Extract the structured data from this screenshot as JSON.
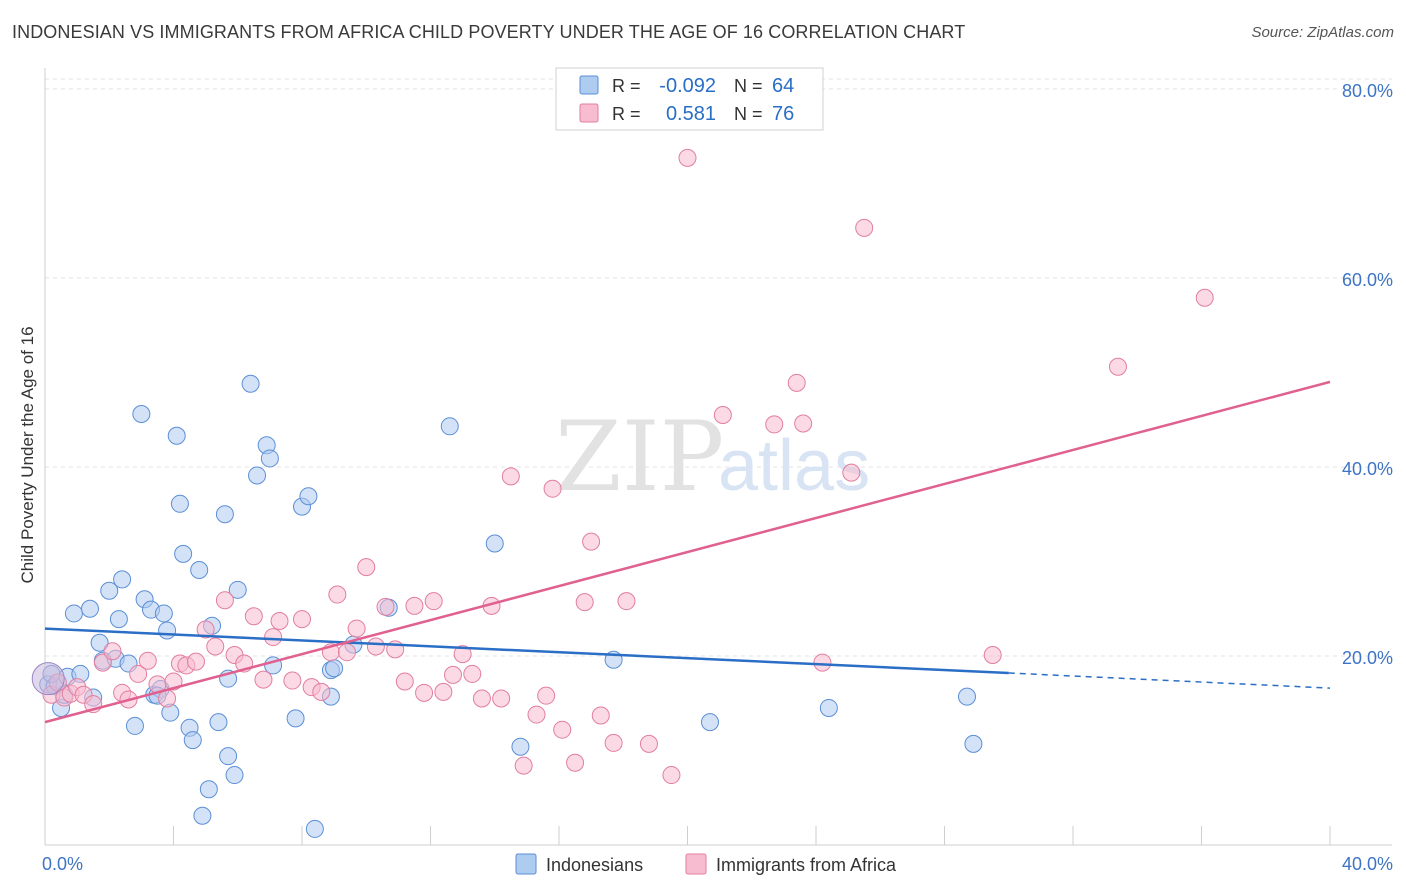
{
  "header": {
    "title": "INDONESIAN VS IMMIGRANTS FROM AFRICA CHILD POVERTY UNDER THE AGE OF 16 CORRELATION CHART",
    "source": "Source: ZipAtlas.com"
  },
  "watermark": {
    "zip": "ZIP",
    "atlas": "atlas"
  },
  "stats_box": {
    "rows": [
      {
        "r_label": "R =",
        "r_value": "-0.092",
        "n_label": "N =",
        "n_value": "64",
        "color": "#aecbf0"
      },
      {
        "r_label": "R =",
        "r_value": "0.581",
        "n_label": "N =",
        "n_value": "76",
        "color": "#f7bccf"
      }
    ]
  },
  "chart_data": {
    "type": "scatter",
    "title": "INDONESIAN VS IMMIGRANTS FROM AFRICA CHILD POVERTY UNDER THE AGE OF 16 CORRELATION CHART",
    "xlabel": "",
    "ylabel": "Child Poverty Under the Age of 16",
    "xlim": [
      0,
      40
    ],
    "ylim": [
      0,
      82
    ],
    "x_tick_labels": [
      "0.0%",
      "40.0%"
    ],
    "y_ticks": [
      20,
      40,
      60,
      80
    ],
    "y_tick_labels": [
      "20.0%",
      "40.0%",
      "60.0%",
      "80.0%"
    ],
    "grid": true,
    "legend_position": "bottom-center",
    "series": [
      {
        "name": "Indonesians",
        "color": "#aecbf0",
        "stroke": "#5b8fd6",
        "line_color": "#2a6ec6",
        "trend": {
          "x0": 0,
          "y0": 22.9,
          "x1": 30,
          "y1": 18.2,
          "dash_x1": 40,
          "dash_y1": 16.6
        },
        "points": [
          [
            0.1,
            17.0
          ],
          [
            0.3,
            16.8
          ],
          [
            0.5,
            14.5
          ],
          [
            0.6,
            15.9
          ],
          [
            0.7,
            17.8
          ],
          [
            0.9,
            24.5
          ],
          [
            1.1,
            18.1
          ],
          [
            1.4,
            25.0
          ],
          [
            1.5,
            15.6
          ],
          [
            1.7,
            21.4
          ],
          [
            1.8,
            19.5
          ],
          [
            2.0,
            26.9
          ],
          [
            2.2,
            19.7
          ],
          [
            2.3,
            23.9
          ],
          [
            2.4,
            28.1
          ],
          [
            2.6,
            19.2
          ],
          [
            2.8,
            12.6
          ],
          [
            3.0,
            45.6
          ],
          [
            3.1,
            26.0
          ],
          [
            3.3,
            24.9
          ],
          [
            3.4,
            15.9
          ],
          [
            3.6,
            16.5
          ],
          [
            3.7,
            24.5
          ],
          [
            3.8,
            22.7
          ],
          [
            3.9,
            14.0
          ],
          [
            4.1,
            43.3
          ],
          [
            4.2,
            36.1
          ],
          [
            4.3,
            30.8
          ],
          [
            4.5,
            12.4
          ],
          [
            4.6,
            11.1
          ],
          [
            4.8,
            29.1
          ],
          [
            5.1,
            5.9
          ],
          [
            5.2,
            23.2
          ],
          [
            5.4,
            13.0
          ],
          [
            5.6,
            35.0
          ],
          [
            5.7,
            17.6
          ],
          [
            5.9,
            7.4
          ],
          [
            6.0,
            27.0
          ],
          [
            6.4,
            48.8
          ],
          [
            6.6,
            39.1
          ],
          [
            6.9,
            42.3
          ],
          [
            7.0,
            40.9
          ],
          [
            7.1,
            19.0
          ],
          [
            7.8,
            13.4
          ],
          [
            8.0,
            35.8
          ],
          [
            8.2,
            36.9
          ],
          [
            8.4,
            1.7
          ],
          [
            8.9,
            18.5
          ],
          [
            9.0,
            18.7
          ],
          [
            9.6,
            21.2
          ],
          [
            10.7,
            25.1
          ],
          [
            12.6,
            44.3
          ],
          [
            14.0,
            31.9
          ],
          [
            14.8,
            10.4
          ],
          [
            17.7,
            19.6
          ],
          [
            20.7,
            13.0
          ],
          [
            24.4,
            14.5
          ],
          [
            28.7,
            15.7
          ],
          [
            28.9,
            10.7
          ],
          [
            0.2,
            18.1
          ],
          [
            5.7,
            9.4
          ],
          [
            4.9,
            3.1
          ],
          [
            3.5,
            15.8
          ],
          [
            8.9,
            15.7
          ]
        ]
      },
      {
        "name": "Immigrants from Africa",
        "color": "#f7bccf",
        "stroke": "#e27ea0",
        "line_color": "#e0608f",
        "trend": {
          "x0": 0,
          "y0": 13.0,
          "x1": 40,
          "y1": 49.0
        },
        "points": [
          [
            0.2,
            15.9
          ],
          [
            0.4,
            17.2
          ],
          [
            0.6,
            15.6
          ],
          [
            0.8,
            16.0
          ],
          [
            1.0,
            16.7
          ],
          [
            1.2,
            15.9
          ],
          [
            1.5,
            14.9
          ],
          [
            1.8,
            19.3
          ],
          [
            2.1,
            20.5
          ],
          [
            2.4,
            16.1
          ],
          [
            2.6,
            15.4
          ],
          [
            2.9,
            18.1
          ],
          [
            3.2,
            19.5
          ],
          [
            3.5,
            17.0
          ],
          [
            3.8,
            15.5
          ],
          [
            4.0,
            17.3
          ],
          [
            4.2,
            19.2
          ],
          [
            4.4,
            19.0
          ],
          [
            4.7,
            19.4
          ],
          [
            5.0,
            22.8
          ],
          [
            5.3,
            21.0
          ],
          [
            5.6,
            25.9
          ],
          [
            5.9,
            20.1
          ],
          [
            6.2,
            19.2
          ],
          [
            6.5,
            24.2
          ],
          [
            6.8,
            17.5
          ],
          [
            7.1,
            22.0
          ],
          [
            7.3,
            23.7
          ],
          [
            7.7,
            17.4
          ],
          [
            8.0,
            23.9
          ],
          [
            8.3,
            16.7
          ],
          [
            8.6,
            16.2
          ],
          [
            8.9,
            20.4
          ],
          [
            9.1,
            26.5
          ],
          [
            9.4,
            20.4
          ],
          [
            9.7,
            22.9
          ],
          [
            10.0,
            29.4
          ],
          [
            10.3,
            21.0
          ],
          [
            10.6,
            25.2
          ],
          [
            10.9,
            20.7
          ],
          [
            11.2,
            17.3
          ],
          [
            11.5,
            25.3
          ],
          [
            11.8,
            16.1
          ],
          [
            12.1,
            25.8
          ],
          [
            12.4,
            16.2
          ],
          [
            12.7,
            18.0
          ],
          [
            13.0,
            20.2
          ],
          [
            13.3,
            18.1
          ],
          [
            13.6,
            15.5
          ],
          [
            13.9,
            25.3
          ],
          [
            14.2,
            15.5
          ],
          [
            14.5,
            39.0
          ],
          [
            14.9,
            8.4
          ],
          [
            15.3,
            13.8
          ],
          [
            15.6,
            15.8
          ],
          [
            15.8,
            37.7
          ],
          [
            16.1,
            12.2
          ],
          [
            16.5,
            8.7
          ],
          [
            16.8,
            25.7
          ],
          [
            17.0,
            32.1
          ],
          [
            17.3,
            13.7
          ],
          [
            17.7,
            10.8
          ],
          [
            18.1,
            25.8
          ],
          [
            18.8,
            10.7
          ],
          [
            19.5,
            7.4
          ],
          [
            20.0,
            72.7
          ],
          [
            21.1,
            45.5
          ],
          [
            22.7,
            44.5
          ],
          [
            23.4,
            48.9
          ],
          [
            23.6,
            44.6
          ],
          [
            24.2,
            19.3
          ],
          [
            25.1,
            39.4
          ],
          [
            25.5,
            65.3
          ],
          [
            29.5,
            20.1
          ],
          [
            33.4,
            50.6
          ],
          [
            36.1,
            57.9
          ]
        ]
      }
    ]
  }
}
